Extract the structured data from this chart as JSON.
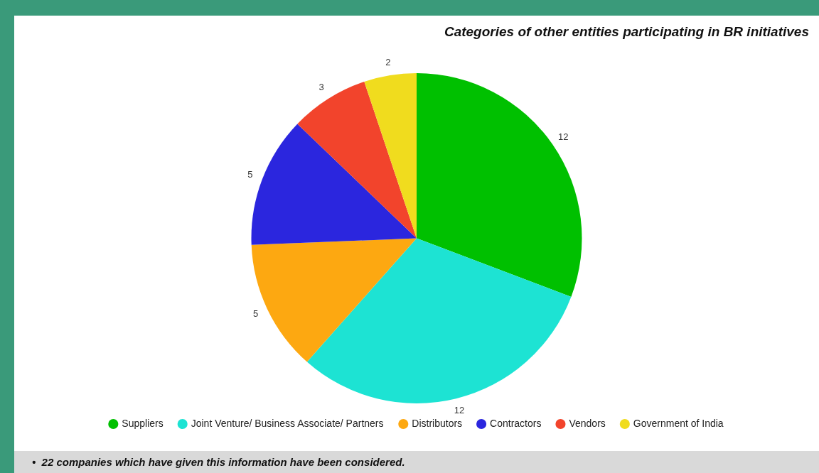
{
  "chart_data": {
    "type": "pie",
    "title": "Categories of other entities participating in BR initiatives",
    "categories": [
      "Suppliers",
      "Joint Venture/ Business Associate/ Partners",
      "Distributors",
      "Contractors",
      "Vendors",
      "Government of India"
    ],
    "values": [
      12,
      12,
      5,
      5,
      3,
      2
    ],
    "colors": [
      "#00c000",
      "#1de3d3",
      "#fda811",
      "#2b26de",
      "#f2442c",
      "#f0dc1e"
    ],
    "data_labels": true,
    "legend": "bottom",
    "annotations": [
      "•  22 companies which have given this information have been considered."
    ]
  }
}
